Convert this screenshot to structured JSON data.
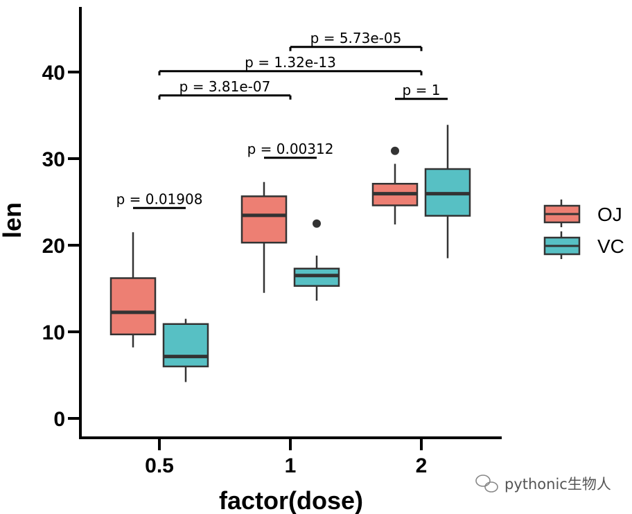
{
  "chart_data": {
    "type": "boxplot",
    "title": "",
    "xlabel": "factor(dose)",
    "ylabel": "len",
    "categories": [
      "0.5",
      "1",
      "2"
    ],
    "ylim": [
      -2,
      47
    ],
    "yticks": [
      0,
      10,
      20,
      30,
      40
    ],
    "ytick_labels": [
      "0",
      "10",
      "20",
      "30",
      "40"
    ],
    "series": [
      {
        "name": "OJ",
        "color": "#ED7F73",
        "boxes": [
          {
            "category": "0.5",
            "whisker_low": 8.2,
            "q1": 9.7,
            "median": 12.25,
            "q3": 16.2,
            "whisker_high": 21.5,
            "outliers": []
          },
          {
            "category": "1",
            "whisker_low": 14.5,
            "q1": 20.3,
            "median": 23.45,
            "q3": 25.65,
            "whisker_high": 27.3,
            "outliers": []
          },
          {
            "category": "2",
            "whisker_low": 22.4,
            "q1": 24.6,
            "median": 25.95,
            "q3": 27.1,
            "whisker_high": 29.4,
            "outliers": [
              30.9
            ]
          }
        ]
      },
      {
        "name": "VC",
        "color": "#57C0C4",
        "boxes": [
          {
            "category": "0.5",
            "whisker_low": 4.2,
            "q1": 6.0,
            "median": 7.15,
            "q3": 10.9,
            "whisker_high": 11.5,
            "outliers": []
          },
          {
            "category": "1",
            "whisker_low": 13.6,
            "q1": 15.3,
            "median": 16.5,
            "q3": 17.3,
            "whisker_high": 18.8,
            "outliers": [
              22.5
            ]
          },
          {
            "category": "2",
            "whisker_low": 18.5,
            "q1": 23.4,
            "median": 25.95,
            "q3": 28.8,
            "whisker_high": 33.9,
            "outliers": []
          }
        ]
      }
    ],
    "annotations": [
      {
        "label": "p = 0.01908",
        "from": {
          "category": "0.5",
          "series": "OJ"
        },
        "to": {
          "category": "0.5",
          "series": "VC"
        },
        "y": 24.3
      },
      {
        "label": "p = 0.00312",
        "from": {
          "category": "1",
          "series": "OJ"
        },
        "to": {
          "category": "1",
          "series": "VC"
        },
        "y": 30.1
      },
      {
        "label": "p = 1",
        "from": {
          "category": "2",
          "series": "OJ"
        },
        "to": {
          "category": "2",
          "series": "VC"
        },
        "y": 36.9
      },
      {
        "label": "p = 3.81e-07",
        "from": {
          "category": "0.5"
        },
        "to": {
          "category": "1"
        },
        "y": 37.3
      },
      {
        "label": "p = 1.32e-13",
        "from": {
          "category": "0.5"
        },
        "to": {
          "category": "2"
        },
        "y": 40.1
      },
      {
        "label": "p = 5.73e-05",
        "from": {
          "category": "1"
        },
        "to": {
          "category": "2"
        },
        "y": 42.9
      }
    ],
    "legend": {
      "position": "right",
      "entries": [
        "OJ",
        "VC"
      ]
    },
    "grid": false
  },
  "watermark": {
    "icon": "wechat-icon",
    "text": "pythonic生物人"
  }
}
